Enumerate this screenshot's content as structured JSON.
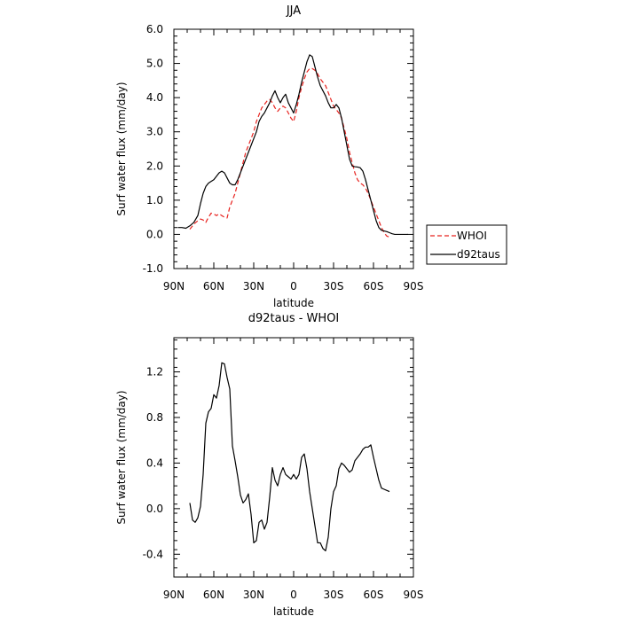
{
  "chart_data": [
    {
      "type": "line",
      "title": "JJA",
      "xlabel": "latitude",
      "ylabel": "Surf water flux (mm/day)",
      "xlim": [
        90,
        -90
      ],
      "ylim": [
        -1.0,
        6.0
      ],
      "xticks": [
        {
          "value": 90,
          "label": "90N"
        },
        {
          "value": 60,
          "label": "60N"
        },
        {
          "value": 30,
          "label": "30N"
        },
        {
          "value": 0,
          "label": "0"
        },
        {
          "value": -30,
          "label": "30S"
        },
        {
          "value": -60,
          "label": "60S"
        },
        {
          "value": -90,
          "label": "90S"
        }
      ],
      "yticks": [
        {
          "value": -1.0,
          "label": "-1.0"
        },
        {
          "value": 0.0,
          "label": "0.0"
        },
        {
          "value": 1.0,
          "label": "1.0"
        },
        {
          "value": 2.0,
          "label": "2.0"
        },
        {
          "value": 3.0,
          "label": "3.0"
        },
        {
          "value": 4.0,
          "label": "4.0"
        },
        {
          "value": 5.0,
          "label": "5.0"
        },
        {
          "value": 6.0,
          "label": "6.0"
        }
      ],
      "grid": false,
      "legend": "outside-right",
      "series": [
        {
          "name": "WHOI",
          "color": "#e8231f",
          "dash": "dashed",
          "x": [
            78,
            75,
            72,
            70,
            68,
            66,
            64,
            62,
            60,
            58,
            56,
            54,
            52,
            50,
            48,
            46,
            44,
            42,
            40,
            38,
            36,
            34,
            32,
            30,
            28,
            26,
            24,
            22,
            20,
            18,
            16,
            14,
            12,
            10,
            8,
            6,
            4,
            2,
            0,
            -2,
            -4,
            -6,
            -8,
            -10,
            -12,
            -14,
            -16,
            -18,
            -20,
            -22,
            -24,
            -26,
            -28,
            -30,
            -32,
            -34,
            -36,
            -38,
            -40,
            -42,
            -44,
            -46,
            -48,
            -50,
            -52,
            -54,
            -56,
            -58,
            -60,
            -62,
            -64,
            -66,
            -68,
            -70,
            -72
          ],
          "y": [
            0.15,
            0.3,
            0.4,
            0.45,
            0.42,
            0.35,
            0.5,
            0.62,
            0.6,
            0.55,
            0.6,
            0.55,
            0.5,
            0.48,
            0.8,
            1.0,
            1.2,
            1.5,
            1.8,
            2.1,
            2.4,
            2.6,
            2.8,
            3.0,
            3.3,
            3.5,
            3.7,
            3.8,
            3.9,
            3.95,
            3.85,
            3.7,
            3.6,
            3.7,
            3.75,
            3.7,
            3.55,
            3.4,
            3.3,
            3.6,
            4.0,
            4.3,
            4.55,
            4.75,
            4.85,
            4.85,
            4.8,
            4.7,
            4.55,
            4.45,
            4.35,
            4.15,
            3.95,
            3.75,
            3.65,
            3.55,
            3.4,
            3.1,
            2.8,
            2.4,
            2.1,
            1.8,
            1.6,
            1.5,
            1.45,
            1.35,
            1.2,
            1.0,
            0.8,
            0.6,
            0.4,
            0.2,
            0.05,
            -0.05,
            -0.08
          ]
        },
        {
          "name": "d92taus",
          "color": "#000000",
          "dash": "solid",
          "x": [
            87,
            84,
            81,
            78,
            75,
            72,
            70,
            68,
            66,
            64,
            62,
            60,
            58,
            56,
            54,
            52,
            50,
            48,
            46,
            44,
            42,
            40,
            38,
            36,
            34,
            32,
            30,
            28,
            26,
            24,
            22,
            20,
            18,
            16,
            14,
            12,
            10,
            8,
            6,
            4,
            2,
            0,
            -2,
            -4,
            -6,
            -8,
            -10,
            -12,
            -14,
            -16,
            -18,
            -20,
            -22,
            -24,
            -26,
            -28,
            -30,
            -32,
            -34,
            -36,
            -38,
            -40,
            -42,
            -44,
            -46,
            -48,
            -50,
            -52,
            -54,
            -56,
            -58,
            -60,
            -62,
            -64,
            -66,
            -68,
            -70,
            -72,
            -74,
            -76,
            -78,
            -80,
            -82,
            -84,
            -86
          ],
          "y": [
            0.2,
            0.2,
            0.18,
            0.25,
            0.35,
            0.55,
            0.9,
            1.2,
            1.4,
            1.5,
            1.55,
            1.6,
            1.7,
            1.8,
            1.85,
            1.8,
            1.65,
            1.5,
            1.45,
            1.45,
            1.6,
            1.8,
            2.0,
            2.2,
            2.4,
            2.6,
            2.8,
            3.0,
            3.3,
            3.45,
            3.55,
            3.7,
            3.85,
            4.05,
            4.2,
            4.0,
            3.85,
            4.0,
            4.1,
            3.85,
            3.7,
            3.55,
            3.8,
            4.1,
            4.45,
            4.75,
            5.05,
            5.25,
            5.2,
            4.9,
            4.6,
            4.35,
            4.2,
            4.05,
            3.85,
            3.7,
            3.7,
            3.8,
            3.7,
            3.4,
            3.0,
            2.6,
            2.2,
            2.0,
            1.98,
            1.97,
            1.95,
            1.85,
            1.6,
            1.3,
            1.0,
            0.7,
            0.4,
            0.2,
            0.12,
            0.1,
            0.08,
            0.05,
            0.02,
            0.0,
            0.0,
            0.0,
            0.0,
            0.0,
            0.0
          ]
        }
      ]
    },
    {
      "type": "line",
      "title": "d92taus - WHOI",
      "xlabel": "latitude",
      "ylabel": "Surf water flux (mm/day)",
      "xlim": [
        90,
        -90
      ],
      "ylim": [
        -0.6,
        1.5
      ],
      "xticks": [
        {
          "value": 90,
          "label": "90N"
        },
        {
          "value": 60,
          "label": "60N"
        },
        {
          "value": 30,
          "label": "30N"
        },
        {
          "value": 0,
          "label": "0"
        },
        {
          "value": -30,
          "label": "30S"
        },
        {
          "value": -60,
          "label": "60S"
        },
        {
          "value": -90,
          "label": "90S"
        }
      ],
      "yticks": [
        {
          "value": -0.4,
          "label": "-0.4"
        },
        {
          "value": 0.0,
          "label": "0.0"
        },
        {
          "value": 0.4,
          "label": "0.4"
        },
        {
          "value": 0.8,
          "label": "0.8"
        },
        {
          "value": 1.2,
          "label": "1.2"
        }
      ],
      "grid": false,
      "series": [
        {
          "name": "",
          "color": "#000000",
          "dash": "solid",
          "x": [
            78,
            76,
            74,
            72,
            70,
            68,
            66,
            64,
            62,
            60,
            58,
            56,
            54,
            52,
            50,
            48,
            46,
            44,
            42,
            40,
            38,
            36,
            34,
            32,
            30,
            28,
            26,
            24,
            22,
            20,
            18,
            16,
            14,
            12,
            10,
            8,
            6,
            4,
            2,
            0,
            -2,
            -4,
            -6,
            -8,
            -10,
            -12,
            -14,
            -16,
            -18,
            -20,
            -22,
            -24,
            -26,
            -28,
            -30,
            -32,
            -34,
            -36,
            -38,
            -40,
            -42,
            -44,
            -46,
            -48,
            -50,
            -52,
            -54,
            -56,
            -58,
            -60,
            -62,
            -64,
            -66,
            -68,
            -70,
            -72
          ],
          "y": [
            0.05,
            -0.1,
            -0.12,
            -0.08,
            0.02,
            0.3,
            0.75,
            0.85,
            0.88,
            1.0,
            0.97,
            1.08,
            1.28,
            1.27,
            1.15,
            1.05,
            0.55,
            0.42,
            0.28,
            0.12,
            0.05,
            0.08,
            0.13,
            -0.05,
            -0.3,
            -0.28,
            -0.12,
            -0.1,
            -0.18,
            -0.12,
            0.1,
            0.36,
            0.25,
            0.2,
            0.3,
            0.36,
            0.3,
            0.28,
            0.26,
            0.3,
            0.26,
            0.3,
            0.45,
            0.48,
            0.35,
            0.15,
            0.0,
            -0.15,
            -0.3,
            -0.3,
            -0.35,
            -0.37,
            -0.25,
            0.0,
            0.15,
            0.2,
            0.35,
            0.4,
            0.38,
            0.35,
            0.32,
            0.34,
            0.42,
            0.45,
            0.48,
            0.52,
            0.54,
            0.54,
            0.56,
            0.45,
            0.35,
            0.25,
            0.18,
            0.17,
            0.16,
            0.15
          ]
        }
      ]
    }
  ]
}
